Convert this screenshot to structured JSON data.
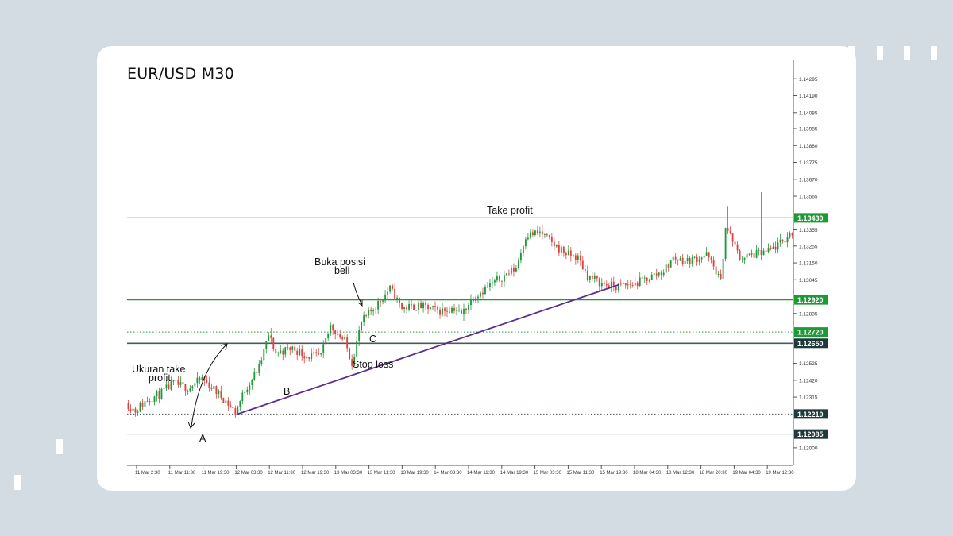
{
  "chart_data": {
    "type": "candlestick",
    "title": "EUR/USD M30",
    "colors": {
      "bull": "#1f9a3a",
      "bear": "#e0413e",
      "level_green": "#1c9b35",
      "level_dark": "#4a5a5a",
      "trendline": "#5a2d91",
      "label_green": "#1c9b35",
      "label_dark": "#1f3a3a"
    },
    "y_axis": {
      "ylim": [
        1.1195,
        1.144
      ],
      "ticks": [
        "1.14295",
        "1.14190",
        "1.14085",
        "1.13985",
        "1.13880",
        "1.13775",
        "1.13670",
        "1.13565",
        "1.13355",
        "1.13255",
        "1.13150",
        "1.13045",
        "1.12835",
        "1.12525",
        "1.12420",
        "1.12315",
        "1.12000"
      ]
    },
    "x_axis": {
      "count": 280,
      "ticks": [
        "11 Mar 2:30",
        "11 Mar 11:30",
        "11 Mar 19:30",
        "12 Mar 03:30",
        "12 Mar 11:30",
        "12 Mar 19:30",
        "13 Mar 03:30",
        "13 Mar 11:30",
        "13 Mar 19:30",
        "14 Mar 03:30",
        "14 Mar 11:30",
        "14 Mar 19:30",
        "15 Mar 03:30",
        "15 Mar 11:30",
        "15 Mar 19:30",
        "18 Mar 04:30",
        "18 Mar 12:30",
        "18 Mar 20:30",
        "19 Mar 04:30",
        "19 Mar 12:30"
      ]
    },
    "price_path": [
      {
        "i": 0,
        "p": 1.1228
      },
      {
        "i": 4,
        "p": 1.1223
      },
      {
        "i": 9,
        "p": 1.123
      },
      {
        "i": 14,
        "p": 1.1233
      },
      {
        "i": 20,
        "p": 1.124
      },
      {
        "i": 26,
        "p": 1.1237
      },
      {
        "i": 32,
        "p": 1.1243
      },
      {
        "i": 38,
        "p": 1.1235
      },
      {
        "i": 42,
        "p": 1.1229
      },
      {
        "i": 46,
        "p": 1.1222
      },
      {
        "i": 50,
        "p": 1.1236
      },
      {
        "i": 56,
        "p": 1.125
      },
      {
        "i": 60,
        "p": 1.127
      },
      {
        "i": 63,
        "p": 1.1259
      },
      {
        "i": 70,
        "p": 1.1262
      },
      {
        "i": 76,
        "p": 1.1257
      },
      {
        "i": 82,
        "p": 1.1257
      },
      {
        "i": 86,
        "p": 1.1276
      },
      {
        "i": 92,
        "p": 1.1266
      },
      {
        "i": 95,
        "p": 1.1253
      },
      {
        "i": 99,
        "p": 1.1278
      },
      {
        "i": 106,
        "p": 1.129
      },
      {
        "i": 111,
        "p": 1.1299
      },
      {
        "i": 116,
        "p": 1.1287
      },
      {
        "i": 124,
        "p": 1.1288
      },
      {
        "i": 132,
        "p": 1.1285
      },
      {
        "i": 138,
        "p": 1.1287
      },
      {
        "i": 141,
        "p": 1.1283
      },
      {
        "i": 146,
        "p": 1.1294
      },
      {
        "i": 152,
        "p": 1.13
      },
      {
        "i": 160,
        "p": 1.1308
      },
      {
        "i": 164,
        "p": 1.1312
      },
      {
        "i": 168,
        "p": 1.1332
      },
      {
        "i": 174,
        "p": 1.1334
      },
      {
        "i": 180,
        "p": 1.1326
      },
      {
        "i": 186,
        "p": 1.132
      },
      {
        "i": 190,
        "p": 1.1318
      },
      {
        "i": 194,
        "p": 1.1307
      },
      {
        "i": 200,
        "p": 1.1302
      },
      {
        "i": 206,
        "p": 1.13
      },
      {
        "i": 214,
        "p": 1.1302
      },
      {
        "i": 220,
        "p": 1.1306
      },
      {
        "i": 226,
        "p": 1.131
      },
      {
        "i": 230,
        "p": 1.1318
      },
      {
        "i": 236,
        "p": 1.1316
      },
      {
        "i": 244,
        "p": 1.132
      },
      {
        "i": 248,
        "p": 1.131
      },
      {
        "i": 250,
        "p": 1.1303
      },
      {
        "i": 252,
        "p": 1.1337
      },
      {
        "i": 254,
        "p": 1.1332
      },
      {
        "i": 258,
        "p": 1.1318
      },
      {
        "i": 264,
        "p": 1.132
      },
      {
        "i": 270,
        "p": 1.1322
      },
      {
        "i": 276,
        "p": 1.1328
      },
      {
        "i": 280,
        "p": 1.1334
      }
    ],
    "levels": [
      {
        "value": 1.1343,
        "label": "1.13430",
        "color": "level_green",
        "style": "solid",
        "name": "take-profit-level"
      },
      {
        "value": 1.1292,
        "label": "1.12920",
        "color": "level_green",
        "style": "solid",
        "name": "entry-level"
      },
      {
        "value": 1.1272,
        "label": "1.12720",
        "color": "level_green",
        "style": "dotted",
        "name": "c-level"
      },
      {
        "value": 1.1265,
        "label": "1.12650",
        "color": "level_dark",
        "style": "solid",
        "name": "stop-loss-level"
      },
      {
        "value": 1.1221,
        "label": "1.12210",
        "color": "level_dark",
        "style": "dotted",
        "name": "a-level"
      },
      {
        "value": 1.12085,
        "label": "1.12085",
        "color": "level_dark",
        "style": "solid-light",
        "name": "low-level"
      }
    ],
    "trendline": {
      "from": {
        "i": 46,
        "p": 1.1221
      },
      "to": {
        "i": 203,
        "p": 1.13
      }
    },
    "annotations": {
      "take_profit": "Take profit",
      "stop_loss": "Stop loss",
      "entry_line1": "Buka posisi",
      "entry_line2": "beli",
      "tp_size_line1": "Ukuran take",
      "tp_size_line2": "profit",
      "point_a": "A",
      "point_b": "B",
      "point_c": "C"
    }
  }
}
